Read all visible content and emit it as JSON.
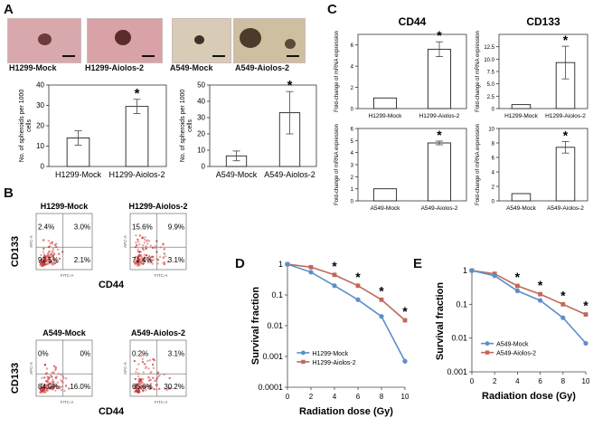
{
  "panel_labels": {
    "A": "A",
    "B": "B",
    "C": "C",
    "D": "D",
    "E": "E"
  },
  "photos": [
    {
      "caption": "H1299-Mock"
    },
    {
      "caption": "H1299-Aiolos-2"
    },
    {
      "caption": "A549-Mock"
    },
    {
      "caption": "A549-Aiolos-2"
    }
  ],
  "flow": {
    "y_label": "CD133",
    "x_label": "CD44",
    "axis_small_y": "APC-A",
    "axis_small_x": "FITC-A",
    "plots": [
      {
        "title": "H1299-Mock",
        "ul": "2.4%",
        "ur": "3.0%",
        "ll": "92.5%",
        "lr": "2.1%"
      },
      {
        "title": "H1299-Aiolos-2",
        "ul": "15.6%",
        "ur": "9.9%",
        "ll": "71.4%",
        "lr": "3.1%"
      },
      {
        "title": "A549-Mock",
        "ul": "0%",
        "ur": "0%",
        "ll": "84.0%",
        "lr": "16.0%"
      },
      {
        "title": "A549-Aiolos-2",
        "ul": "0.2%",
        "ur": "3.1%",
        "ll": "66.6%",
        "lr": "30.2%"
      }
    ]
  },
  "chart_data": [
    {
      "id": "A-left",
      "type": "bar",
      "categories": [
        "H1299-Mock",
        "H1299-Aiolos-2"
      ],
      "values": [
        14,
        29.5
      ],
      "errors": [
        3.5,
        3.5
      ],
      "ylabel": "No. of spheroids per 1000 cells",
      "ylim": [
        0,
        40
      ],
      "yticks": [
        0,
        10,
        20,
        30,
        40
      ],
      "significance": [
        false,
        true
      ]
    },
    {
      "id": "A-right",
      "type": "bar",
      "categories": [
        "A549-Mock",
        "A549-Aiolos-2"
      ],
      "values": [
        6.5,
        33
      ],
      "errors": [
        3,
        13
      ],
      "ylabel": "No. of spheroids per 1000 cells",
      "ylim": [
        0,
        50
      ],
      "yticks": [
        0,
        10,
        20,
        30,
        40,
        50
      ],
      "significance": [
        false,
        true
      ]
    },
    {
      "id": "C-CD44-H1299",
      "type": "bar",
      "title": "CD44",
      "categories": [
        "H1299-Mock",
        "H1299-Aiolos-2"
      ],
      "values": [
        1,
        5.6
      ],
      "errors": [
        0,
        0.7
      ],
      "ylabel": "Fold-change of mRNA expression",
      "ylim": [
        0,
        7
      ],
      "yticks": [
        0,
        2,
        4,
        6
      ],
      "significance": [
        false,
        true
      ]
    },
    {
      "id": "C-CD133-H1299",
      "type": "bar",
      "title": "CD133",
      "categories": [
        "H1299-Mock",
        "H1299-Aiolos-2"
      ],
      "values": [
        0.8,
        9.3
      ],
      "errors": [
        0,
        3.3
      ],
      "ylabel": "Fold-change of mRNA expression",
      "ylim": [
        0,
        15
      ],
      "yticks": [
        0,
        2.5,
        5.0,
        7.5,
        10.0,
        12.5
      ],
      "significance": [
        false,
        true
      ]
    },
    {
      "id": "C-CD44-A549",
      "type": "bar",
      "categories": [
        "A549-Mock",
        "A549-Aiolos-2"
      ],
      "values": [
        1,
        4.8
      ],
      "errors": [
        0,
        0.15
      ],
      "ylabel": "Fold-change of mRNA expression",
      "ylim": [
        0,
        6
      ],
      "yticks": [
        0,
        1,
        2,
        3,
        4,
        5,
        6
      ],
      "significance": [
        false,
        true
      ]
    },
    {
      "id": "C-CD133-A549",
      "type": "bar",
      "categories": [
        "A549-Mock",
        "A549-Aiolos-2"
      ],
      "values": [
        1,
        7.4
      ],
      "errors": [
        0,
        0.8
      ],
      "ylabel": "Fold-change of mRNA expression",
      "ylim": [
        0,
        10
      ],
      "yticks": [
        0,
        2,
        4,
        6,
        8,
        10
      ],
      "significance": [
        false,
        true
      ]
    },
    {
      "id": "D",
      "type": "line",
      "x": [
        0,
        2,
        4,
        6,
        8,
        10
      ],
      "xlabel": "Radiation dose (Gy)",
      "ylabel": "Survival fraction",
      "yscale": "log",
      "ylim": [
        0.0001,
        1
      ],
      "yticks": [
        "1",
        "0.1",
        "0.01",
        "0.001",
        "0.0001"
      ],
      "series": [
        {
          "name": "H1299-Mock",
          "color": "#5b8fc8",
          "values": [
            1,
            0.55,
            0.2,
            0.07,
            0.02,
            0.0007
          ]
        },
        {
          "name": "H1299-Aiolos-2",
          "color": "#c0685a",
          "values": [
            1,
            0.8,
            0.45,
            0.2,
            0.07,
            0.015
          ]
        }
      ],
      "significance_x": [
        4,
        6,
        8,
        10
      ]
    },
    {
      "id": "E",
      "type": "line",
      "x": [
        0,
        2,
        4,
        6,
        8,
        10
      ],
      "xlabel": "Radiation dose (Gy)",
      "ylabel": "Survival fraction",
      "yscale": "log",
      "ylim": [
        0.001,
        1
      ],
      "yticks": [
        "1",
        "0.1",
        "0.01",
        "0.001"
      ],
      "series": [
        {
          "name": "A549-Mock",
          "color": "#5b8fc8",
          "values": [
            1,
            0.7,
            0.25,
            0.13,
            0.04,
            0.007
          ]
        },
        {
          "name": "A549-Aiolos-2",
          "color": "#c0685a",
          "values": [
            1,
            0.8,
            0.35,
            0.2,
            0.1,
            0.05
          ]
        }
      ],
      "significance_x": [
        4,
        6,
        8,
        10
      ]
    }
  ]
}
